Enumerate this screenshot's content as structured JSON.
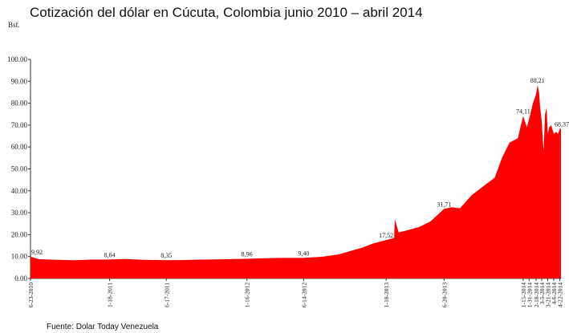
{
  "chart_data": {
    "type": "area",
    "title": "Cotización del dólar en Cúcuta, Colombia junio 2010 – abril 2014",
    "ylabel": "Bsf.",
    "xlabel": "",
    "ylim": [
      0,
      100
    ],
    "yticks": [
      "0.00",
      "10.00",
      "20.00",
      "30.00",
      "40.00",
      "50.00",
      "60.00",
      "70.00",
      "80.00",
      "90.00",
      "100.00"
    ],
    "xtick_labels": [
      "6-23-2010",
      "1-18-2011",
      "6-17-2011",
      "1-16-2012",
      "6-14-2012",
      "1-18-2013",
      "6-20-2013",
      "1-15-2014",
      "1-31-2014",
      "2-18-2014",
      "3-5-2014",
      "3-21-2014",
      "4-6-2014",
      "4-22-2014"
    ],
    "color": "#ff0000",
    "grid": false,
    "series": [
      {
        "x": [
          "2010-06-23",
          "2010-07-15",
          "2010-09-01",
          "2010-10-15",
          "2010-12-01",
          "2011-01-18",
          "2011-03-01",
          "2011-04-15",
          "2011-06-17",
          "2011-08-01",
          "2011-09-15",
          "2011-11-01",
          "2012-01-16",
          "2012-03-01",
          "2012-04-15",
          "2012-06-14",
          "2012-08-01",
          "2012-09-15",
          "2012-10-15",
          "2012-11-15",
          "2012-12-15",
          "2013-01-18",
          "2013-02-08",
          "2013-02-10",
          "2013-02-20",
          "2013-03-15",
          "2013-04-15",
          "2013-05-15",
          "2013-06-20",
          "2013-07-10",
          "2013-08-01",
          "2013-09-01",
          "2013-10-01",
          "2013-11-01",
          "2013-11-20",
          "2013-12-10",
          "2014-01-01",
          "2014-01-15",
          "2014-01-25",
          "2014-01-31",
          "2014-02-10",
          "2014-02-18",
          "2014-02-22",
          "2014-02-26",
          "2014-03-01",
          "2014-03-05",
          "2014-03-10",
          "2014-03-14",
          "2014-03-18",
          "2014-03-21",
          "2014-03-25",
          "2014-03-30",
          "2014-04-06",
          "2014-04-12",
          "2014-04-17",
          "2014-04-22",
          "2014-04-25"
        ],
        "y": [
          9.92,
          8.8,
          8.5,
          8.3,
          8.6,
          8.64,
          8.9,
          8.5,
          8.35,
          8.4,
          8.6,
          8.7,
          8.96,
          9.2,
          9.4,
          9.4,
          9.9,
          11.0,
          12.5,
          14.0,
          16.0,
          17.52,
          18.5,
          27.0,
          21.0,
          22.0,
          23.5,
          26.0,
          31.71,
          32.5,
          32.0,
          38.0,
          42.0,
          46.0,
          55.0,
          62.0,
          64.0,
          74.11,
          69.0,
          73.0,
          80.0,
          84.0,
          88.21,
          85.0,
          78.0,
          72.0,
          58.0,
          75.0,
          78.0,
          66.0,
          69.0,
          70.0,
          66.0,
          67.0,
          66.0,
          68.37,
          68.37
        ]
      }
    ],
    "annotations": [
      {
        "x": "2010-06-23",
        "y": 9.92,
        "text": "9,92"
      },
      {
        "x": "2011-01-18",
        "y": 8.64,
        "text": "8,64"
      },
      {
        "x": "2011-06-17",
        "y": 8.35,
        "text": "8,35"
      },
      {
        "x": "2012-01-16",
        "y": 8.96,
        "text": "8,96"
      },
      {
        "x": "2012-06-14",
        "y": 9.4,
        "text": "9,40"
      },
      {
        "x": "2013-01-18",
        "y": 17.52,
        "text": "17,52"
      },
      {
        "x": "2013-06-20",
        "y": 31.71,
        "text": "31,71"
      },
      {
        "x": "2014-01-15",
        "y": 74.11,
        "text": "74,11"
      },
      {
        "x": "2014-02-22",
        "y": 88.21,
        "text": "88,21"
      },
      {
        "x": "2014-04-22",
        "y": 68.37,
        "text": "68,37"
      }
    ]
  },
  "source": "Fuente: Dolar Today Venezuela"
}
